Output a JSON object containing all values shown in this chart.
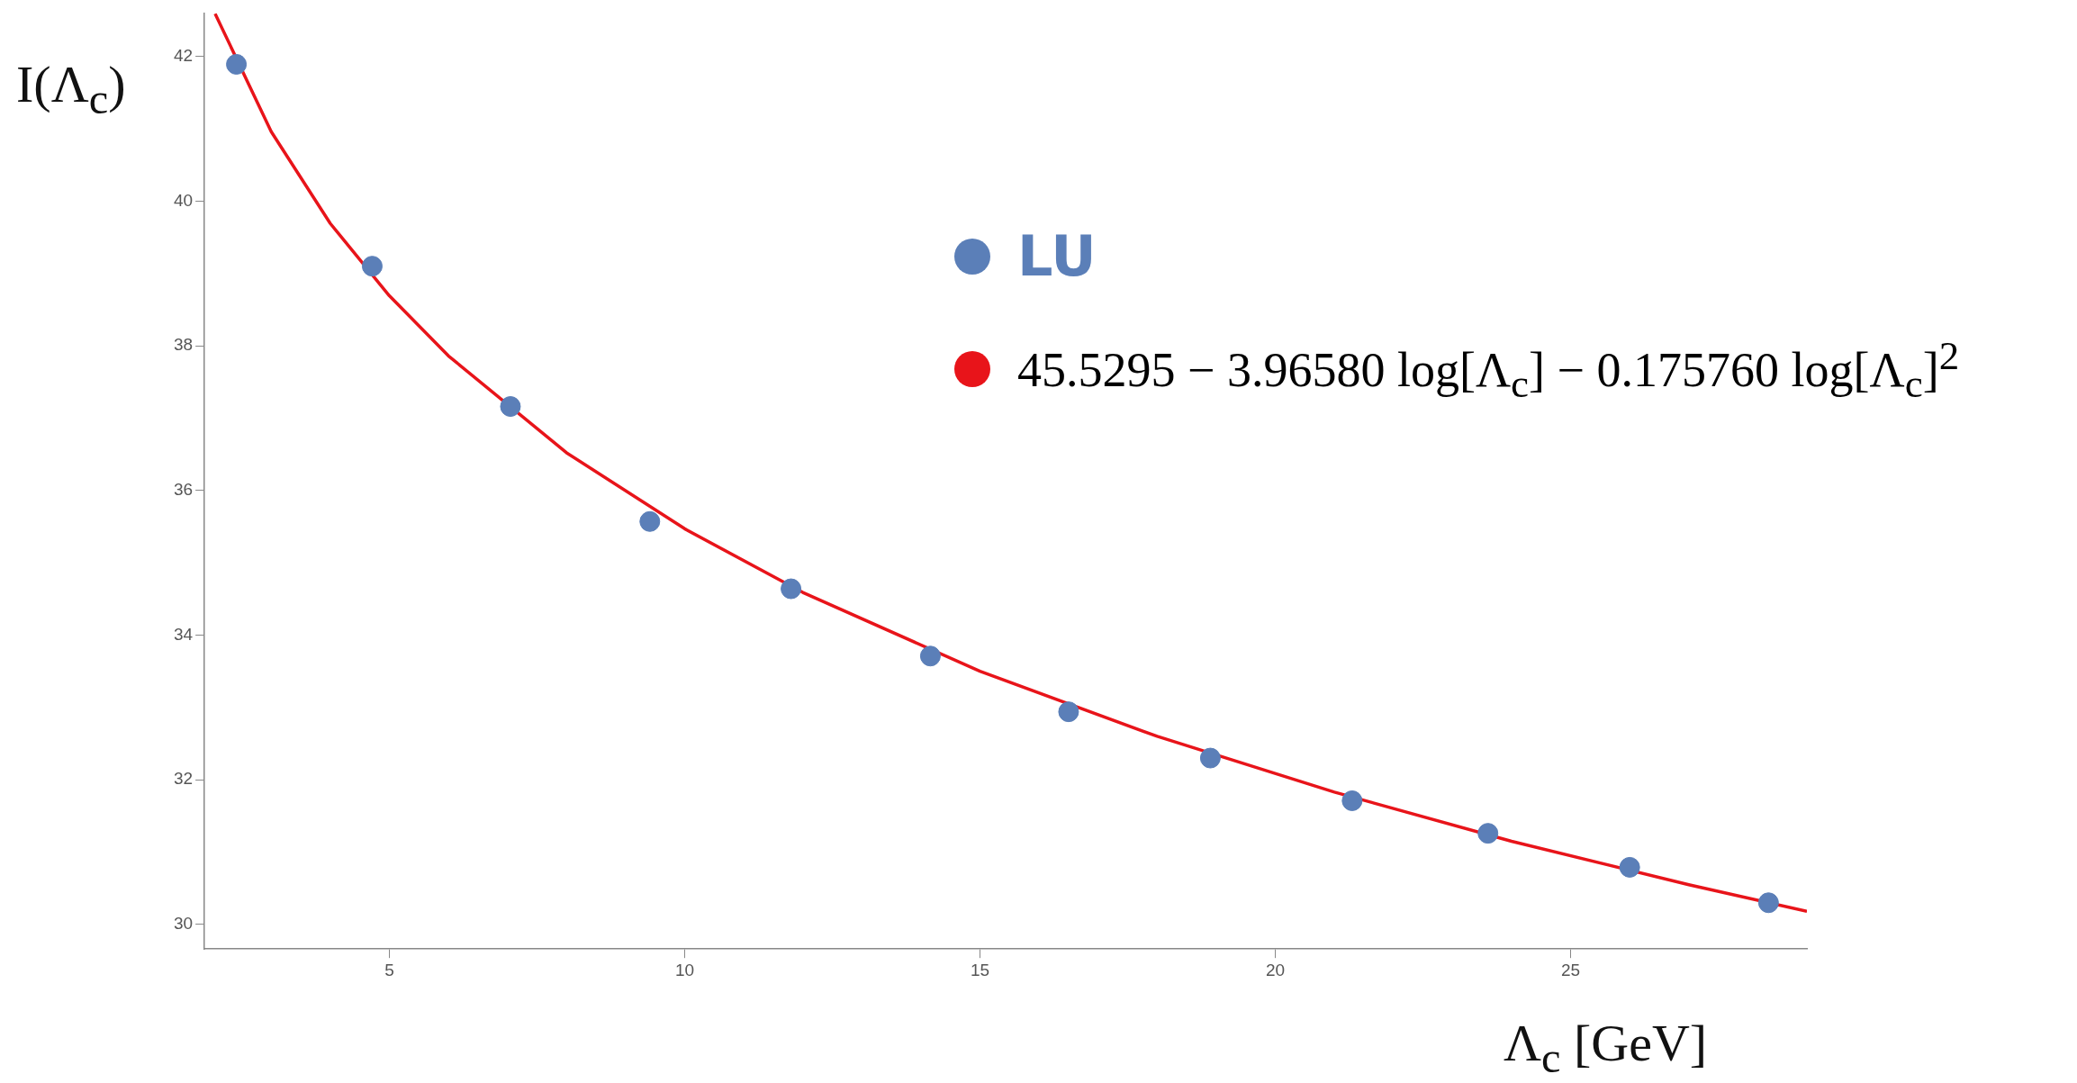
{
  "chart_data": {
    "type": "scatter",
    "xlabel": "Λ$_{c}$ [GeV]",
    "ylabel": "I(Λ$_{c}$)",
    "xlim": [
      1.87,
      29
    ],
    "ylim": [
      29.66,
      42.6
    ],
    "xticks": [
      5,
      10,
      15,
      20,
      25
    ],
    "yticks": [
      30,
      32,
      34,
      36,
      38,
      40,
      42
    ],
    "grid": false,
    "legend": "top right",
    "marker": "circle",
    "series": [
      {
        "name": "LU",
        "color": "#5b7fb8",
        "x": [
          2.41,
          4.71,
          7.05,
          9.41,
          11.8,
          14.16,
          16.5,
          18.9,
          21.3,
          23.6,
          26.0,
          28.35
        ],
        "values": [
          41.89,
          39.1,
          37.16,
          35.57,
          34.64,
          33.71,
          32.94,
          32.3,
          31.71,
          31.26,
          30.79,
          30.3
        ]
      },
      {
        "name": "45.5295 − 3.96580 log[Λ$_{c}$] − 0.175760 log[Λ$_{c}$]$^{2}$",
        "color": "#e8141a",
        "type": "line",
        "marker": "none",
        "x": [
          2.05,
          3,
          4,
          5,
          6,
          8,
          10,
          12,
          15,
          18,
          21,
          24,
          27,
          29
        ],
        "values": [
          42.59,
          40.96,
          39.69,
          38.69,
          37.86,
          36.52,
          35.47,
          34.59,
          33.5,
          32.6,
          31.83,
          31.15,
          30.55,
          30.18
        ]
      }
    ]
  }
}
